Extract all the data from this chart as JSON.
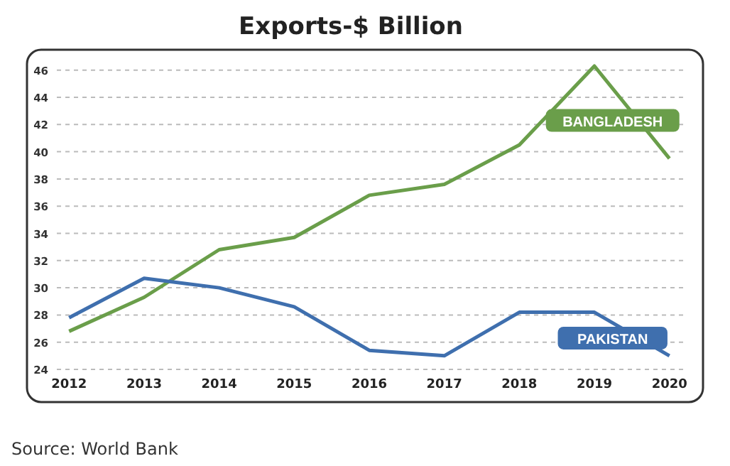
{
  "chart_data": {
    "type": "line",
    "title": "Exports-$ Billion",
    "categories": [
      "2012",
      "2013",
      "2014",
      "2015",
      "2016",
      "2017",
      "2018",
      "2019",
      "2020"
    ],
    "series": [
      {
        "name": "BANGLADESH",
        "color": "#6a9e4a",
        "values": [
          26.8,
          29.3,
          32.8,
          33.7,
          36.8,
          37.6,
          40.5,
          46.3,
          39.5
        ]
      },
      {
        "name": "PAKISTAN",
        "color": "#3f6fae",
        "values": [
          27.8,
          30.7,
          30.0,
          28.6,
          25.4,
          25.0,
          28.2,
          28.2,
          25.0
        ]
      }
    ],
    "ylim": [
      24,
      47.5
    ],
    "yticks": [
      24,
      26,
      28,
      30,
      32,
      34,
      36,
      38,
      40,
      42,
      44,
      46
    ],
    "grid": "y",
    "legend": false,
    "marker": "none",
    "line_style": "solid",
    "annotations": [
      "Source: World Bank"
    ]
  }
}
